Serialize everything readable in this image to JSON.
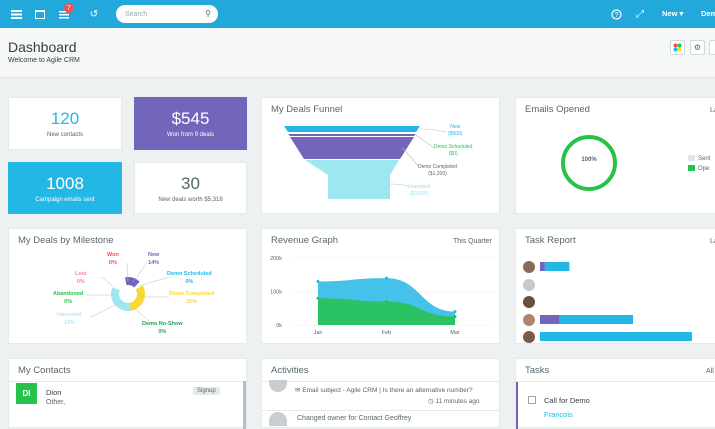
{
  "topbar": {
    "notification_count": "7",
    "search_placeholder": "Search",
    "new_label": "New",
    "user_label": "Dem"
  },
  "header": {
    "title": "Dashboard",
    "subtitle": "Welcome to Agile CRM"
  },
  "stats": {
    "new_contacts": {
      "value": "120",
      "label": "New contacts"
    },
    "won": {
      "value": "$545",
      "label": "Won from 9 deals"
    },
    "campaign": {
      "value": "1008",
      "label": "Campaign emails sent"
    },
    "new_deals": {
      "value": "30",
      "label": "New deals worth $5,318"
    }
  },
  "funnel": {
    "title": "My Deals Funnel",
    "labels": [
      {
        "name": "New",
        "value": "($500)"
      },
      {
        "name": "Demo Scheduled",
        "value": "($0)"
      },
      {
        "name": "Demo Completed",
        "value": "($1,200)"
      },
      {
        "name": "Interested",
        "value": "($3,000)"
      }
    ]
  },
  "emails": {
    "title": "Emails Opened",
    "right_label": "La",
    "percent": "100%",
    "legend": [
      {
        "label": "Sent",
        "color": "#dfe6e9"
      },
      {
        "label": "Ope",
        "color": "#27c24c"
      }
    ]
  },
  "milestone": {
    "title": "My Deals by Milestone",
    "labels": [
      {
        "name": "Won",
        "pct": "0%",
        "color": "#f05050"
      },
      {
        "name": "New",
        "pct": "14%",
        "color": "#7266ba"
      },
      {
        "name": "Lost",
        "pct": "0%",
        "color": "#ff7bac"
      },
      {
        "name": "Demo Scheduled",
        "pct": "0%",
        "color": "#23b7e5"
      },
      {
        "name": "Abandoned",
        "pct": "0%",
        "color": "#27c24c"
      },
      {
        "name": "Demo Completed",
        "pct": "32%",
        "color": "#fad733"
      },
      {
        "name": "Interested",
        "pct": "14%",
        "color": "#9ee1f5"
      },
      {
        "name": "Demo No-Show",
        "pct": "0%",
        "color": "#27a05c"
      }
    ]
  },
  "revenue": {
    "title": "Revenue Graph",
    "right_label": "This Quarter"
  },
  "task_report": {
    "title": "Task Report",
    "right_label": "La"
  },
  "contacts": {
    "title": "My Contacts",
    "items": [
      {
        "initials": "DI",
        "name": "Dion",
        "sub": "Other,",
        "tag": "Signup"
      }
    ]
  },
  "activities": {
    "title": "Activities",
    "items": [
      {
        "text": "Email subject - Agile CRM | Is there an alternative number?",
        "time": "11 minutes ago"
      },
      {
        "text": "Changed owner for Contact Geoffrey",
        "time": ""
      }
    ]
  },
  "tasks": {
    "title": "Tasks",
    "right_label": "All",
    "items": [
      {
        "name": "Call for Demo",
        "person": "Francois"
      }
    ]
  },
  "chart_data": [
    {
      "type": "area",
      "title": "Revenue Graph",
      "categories": [
        "Jan",
        "Feb",
        "Mar"
      ],
      "ylim": [
        0,
        200000
      ],
      "yticks": [
        "0k",
        "100k",
        "200k"
      ],
      "series": [
        {
          "values": [
            130000,
            140000,
            40000
          ],
          "color": "#23b7e5"
        },
        {
          "values": [
            80000,
            70000,
            25000
          ],
          "color": "#27c24c"
        }
      ]
    },
    {
      "type": "bar",
      "title": "Task Report",
      "categories": [
        "1",
        "2",
        "3",
        "4",
        "5"
      ],
      "series": [
        {
          "values": [
            1,
            0,
            0,
            4,
            0
          ],
          "color": "#7266ba"
        },
        {
          "values": [
            5,
            0,
            0,
            15,
            31
          ],
          "color": "#23b7e5"
        }
      ]
    }
  ]
}
